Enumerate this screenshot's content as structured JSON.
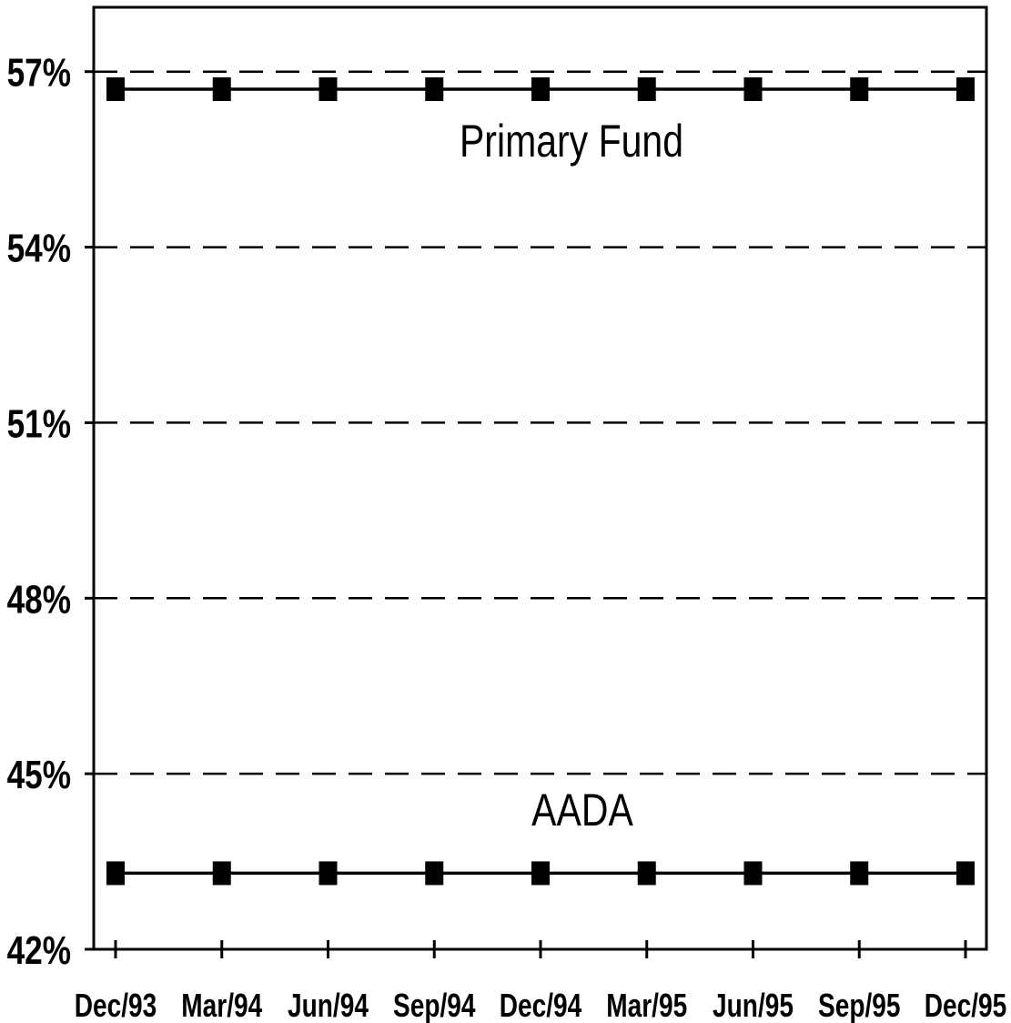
{
  "chart_data": {
    "type": "line",
    "title": "",
    "xlabel": "",
    "ylabel": "",
    "categories": [
      "Dec/93",
      "Mar/94",
      "Jun/94",
      "Sep/94",
      "Dec/94",
      "Mar/95",
      "Jun/95",
      "Sep/95",
      "Dec/95"
    ],
    "y_ticks": [
      "42%",
      "45%",
      "48%",
      "51%",
      "54%",
      "57%"
    ],
    "y_tick_values": [
      42,
      45,
      48,
      51,
      54,
      57
    ],
    "ylim": [
      42,
      58.1
    ],
    "grid": "dashed horizontal at each y tick",
    "legend": "none; series labelled directly on the plot",
    "series": [
      {
        "name": "Primary Fund",
        "values": [
          56.7,
          56.7,
          56.7,
          56.7,
          56.7,
          56.7,
          56.7,
          56.7,
          56.7
        ]
      },
      {
        "name": "AADA",
        "values": [
          43.3,
          43.3,
          43.3,
          43.3,
          43.3,
          43.3,
          43.3,
          43.3,
          43.3
        ]
      }
    ]
  }
}
